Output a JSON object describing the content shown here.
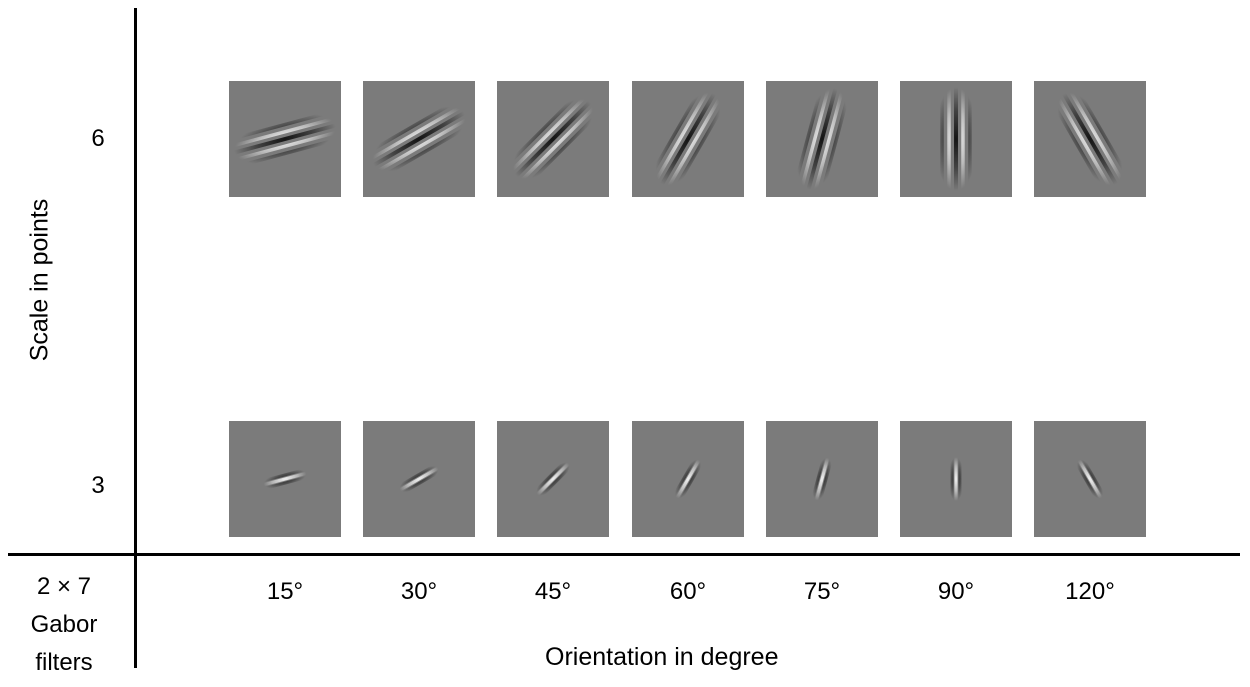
{
  "yaxis": {
    "label": "Scale in points"
  },
  "xaxis": {
    "label": "Orientation in degree"
  },
  "corner": {
    "line1": "2 × 7",
    "line2": "Gabor",
    "line3": "filters"
  },
  "scales": [
    {
      "label": "6",
      "key": "scale6"
    },
    {
      "label": "3",
      "key": "scale3"
    }
  ],
  "orientations": [
    {
      "label": "15°",
      "angle": 15
    },
    {
      "label": "30°",
      "angle": 30
    },
    {
      "label": "45°",
      "angle": 45
    },
    {
      "label": "60°",
      "angle": 60
    },
    {
      "label": "75°",
      "angle": 75
    },
    {
      "label": "90°",
      "angle": 90
    },
    {
      "label": "120°",
      "angle": 120
    }
  ],
  "colors": {
    "tile_background": "#7b7b7b",
    "axis": "#000000"
  }
}
